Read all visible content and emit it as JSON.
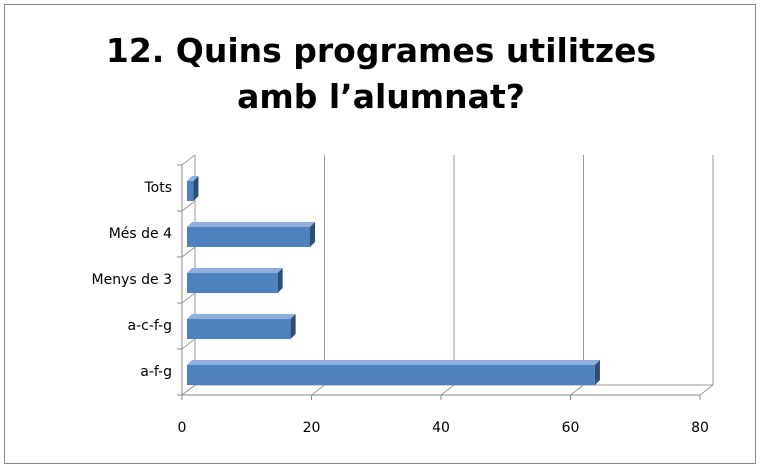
{
  "chart_data": {
    "type": "bar",
    "orientation": "horizontal",
    "title": "12. Quins programes utilitzes amb l’alumnat?",
    "categories": [
      "Tots",
      "Més de 4",
      "Menys de 3",
      "a-c-f-g",
      "a-f-g"
    ],
    "values": [
      1,
      19,
      14,
      16,
      63
    ],
    "color": "#4f81bd",
    "xlim": [
      0,
      80
    ],
    "xticks": [
      0,
      20,
      40,
      60,
      80
    ],
    "grid": true
  }
}
